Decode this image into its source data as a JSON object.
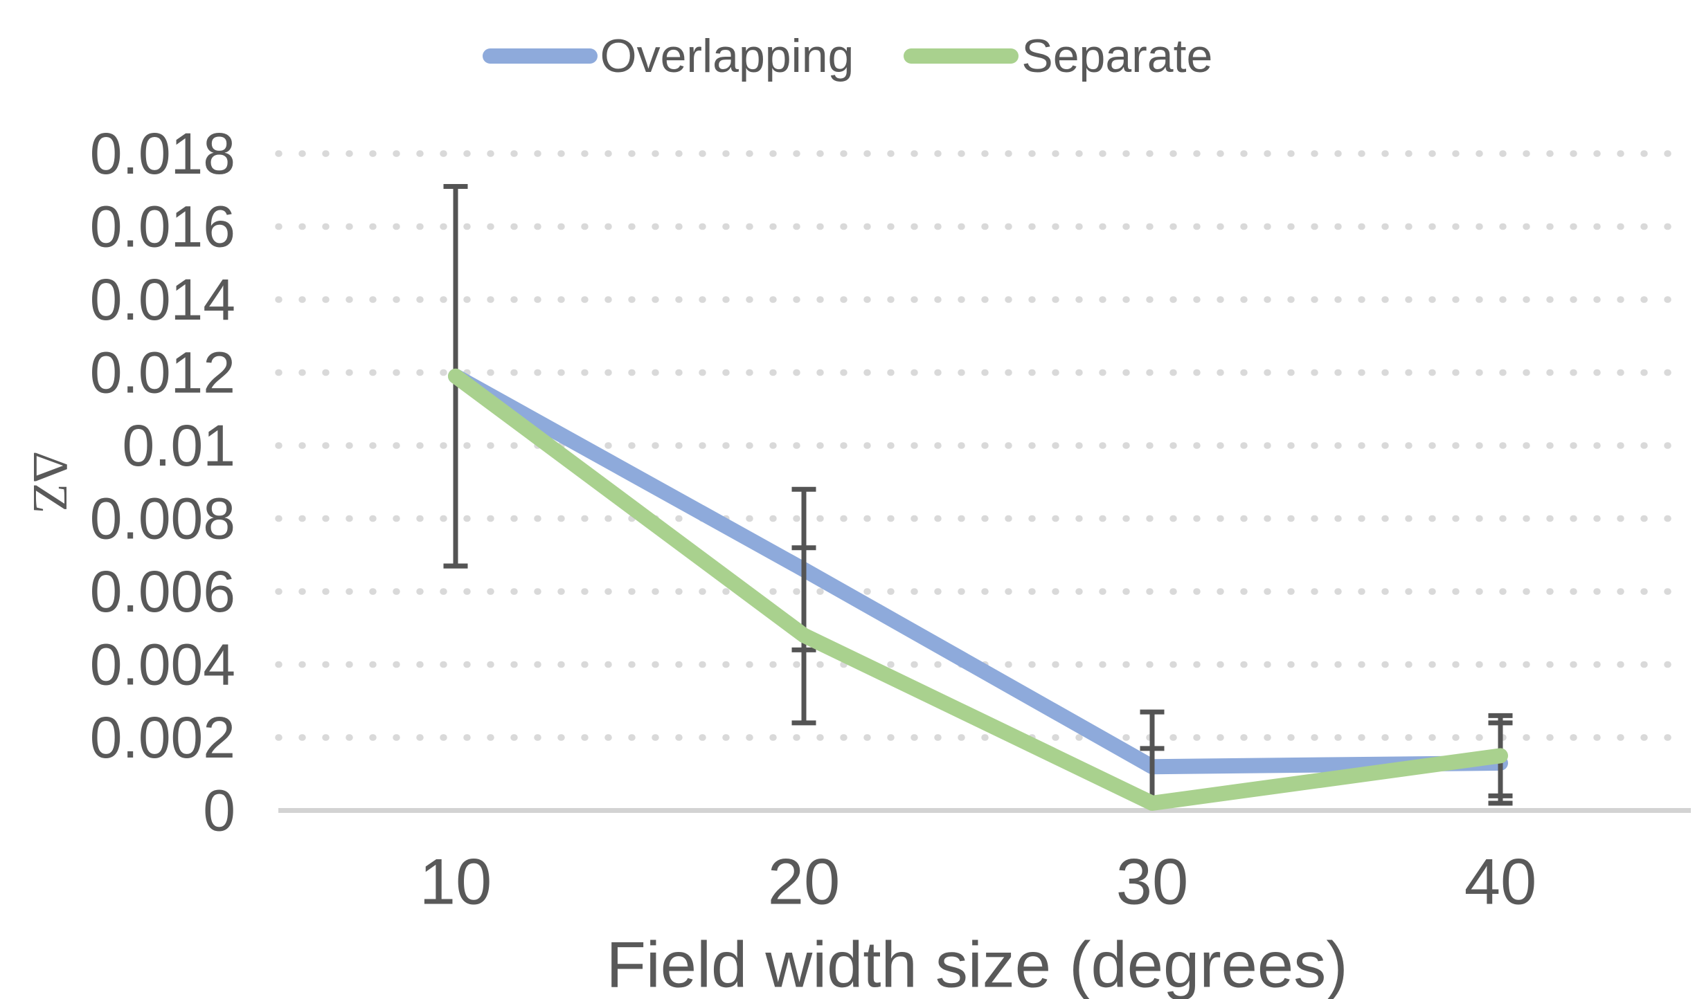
{
  "chart_data": {
    "type": "line",
    "title": "",
    "categories": [
      "10",
      "20",
      "30",
      "40"
    ],
    "xlabel": "Field width size (degrees)",
    "ylabel": "ΔZ",
    "ylim": [
      0,
      0.018
    ],
    "ytick_step": 0.002,
    "ytick_labels": [
      "0",
      "0.002",
      "0.004",
      "0.006",
      "0.008",
      "0.01",
      "0.012",
      "0.014",
      "0.016",
      "0.018"
    ],
    "grid": "horizontal-dotted",
    "legend_position": "top-center",
    "series": [
      {
        "name": "Overlapping",
        "color": "#8EAADB",
        "values": [
          0.0119,
          0.0066,
          0.0012,
          0.0013
        ],
        "error_plus": [
          0.0052,
          0.0022,
          0.0015,
          0.0011
        ],
        "error_minus": [
          0.0052,
          0.0022,
          0.0015,
          0.0011
        ]
      },
      {
        "name": "Separate",
        "color": "#A9D18E",
        "values": [
          0.0119,
          0.0048,
          0.0002,
          0.0015
        ],
        "error_plus": [
          0.0052,
          0.0024,
          0.0015,
          0.0011
        ],
        "error_minus": [
          0.0052,
          0.0024,
          0.0015,
          0.0011
        ]
      }
    ],
    "error_bar_color": "#545454"
  },
  "colors": {
    "text": "#595959",
    "gridline": "#D9D9D9",
    "axis_line": "#D3D3D3",
    "background": "#FFFFFF"
  },
  "legend": {
    "items": [
      {
        "label": "Overlapping",
        "color": "#8EAADB"
      },
      {
        "label": "Separate",
        "color": "#A9D18E"
      }
    ]
  }
}
